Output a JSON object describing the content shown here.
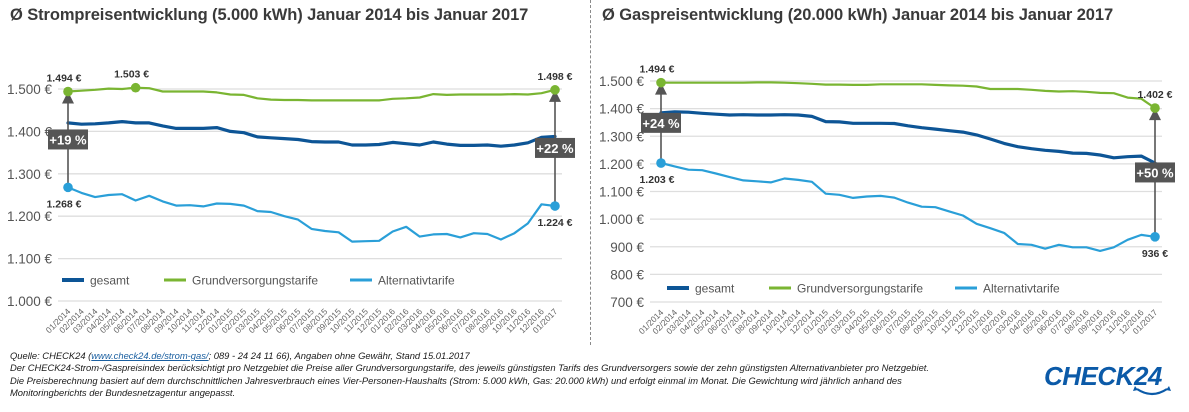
{
  "colors": {
    "gesamt": "#0d5596",
    "grund": "#7ab532",
    "alternativ": "#2a9fd8",
    "gridline": "#dedede",
    "axis_text": "#555555",
    "annotation_box": "#555555",
    "logo": "#0b5aa8"
  },
  "chart_data": [
    {
      "id": "strom",
      "type": "line",
      "title": "Ø Strompreisentwicklung (5.000 kWh) Januar 2014 bis Januar 2017",
      "xlabel": "",
      "ylabel": "",
      "ylim": [
        1000,
        1500
      ],
      "yticks": [
        1000,
        1100,
        1200,
        1300,
        1400,
        1500
      ],
      "ytick_labels": [
        "1.000 €",
        "1.100 €",
        "1.200 €",
        "1.300 €",
        "1.400 €",
        "1.500 €"
      ],
      "grid": true,
      "legend": "bottom-left inside",
      "categories": [
        "01/2014",
        "02/2014",
        "03/2014",
        "04/2014",
        "05/2014",
        "06/2014",
        "07/2014",
        "08/2014",
        "09/2014",
        "10/2014",
        "11/2014",
        "12/2014",
        "01/2015",
        "02/2015",
        "03/2015",
        "04/2015",
        "05/2015",
        "06/2015",
        "07/2015",
        "08/2015",
        "09/2015",
        "10/2015",
        "11/2015",
        "12/2015",
        "01/2016",
        "02/2016",
        "03/2016",
        "04/2016",
        "05/2016",
        "06/2016",
        "07/2016",
        "08/2016",
        "09/2016",
        "10/2016",
        "11/2016",
        "12/2016",
        "01/2017"
      ],
      "series": [
        {
          "key": "gesamt",
          "name": "gesamt",
          "values": [
            1420,
            1417,
            1418,
            1420,
            1423,
            1420,
            1420,
            1413,
            1407,
            1407,
            1407,
            1409,
            1400,
            1397,
            1387,
            1385,
            1383,
            1381,
            1376,
            1375,
            1375,
            1368,
            1368,
            1369,
            1374,
            1371,
            1368,
            1375,
            1370,
            1367,
            1367,
            1368,
            1365,
            1368,
            1373,
            1386,
            1388
          ]
        },
        {
          "key": "grund",
          "name": "Grundversorgungstarife",
          "values": [
            1494,
            1496,
            1498,
            1501,
            1500,
            1503,
            1502,
            1494,
            1494,
            1494,
            1494,
            1492,
            1487,
            1486,
            1478,
            1475,
            1474,
            1474,
            1473,
            1473,
            1473,
            1473,
            1473,
            1473,
            1477,
            1478,
            1480,
            1488,
            1486,
            1487,
            1487,
            1487,
            1487,
            1488,
            1487,
            1490,
            1498
          ]
        },
        {
          "key": "alternativ",
          "name": "Alternativtarife",
          "values": [
            1268,
            1255,
            1245,
            1250,
            1252,
            1237,
            1248,
            1235,
            1225,
            1226,
            1223,
            1230,
            1229,
            1225,
            1212,
            1210,
            1200,
            1192,
            1170,
            1165,
            1162,
            1140,
            1141,
            1142,
            1164,
            1175,
            1152,
            1157,
            1158,
            1150,
            1160,
            1158,
            1145,
            1160,
            1183,
            1228,
            1224
          ]
        }
      ],
      "annotations": {
        "labels": [
          {
            "series": "grund",
            "index": 0,
            "text": "1.494 €",
            "pos": "above"
          },
          {
            "series": "grund",
            "index": 5,
            "text": "1.503 €",
            "pos": "above"
          },
          {
            "series": "grund",
            "index": 36,
            "text": "1.498 €",
            "pos": "above"
          },
          {
            "series": "alternativ",
            "index": 0,
            "text": "1.268 €",
            "pos": "below"
          },
          {
            "series": "alternativ",
            "index": 36,
            "text": "1.224 €",
            "pos": "below"
          }
        ],
        "arrows": [
          {
            "index": 0,
            "from": 1268,
            "to": 1494,
            "text": "+19 %"
          },
          {
            "index": 36,
            "from": 1224,
            "to": 1498,
            "text": "+22 %"
          }
        ]
      }
    },
    {
      "id": "gas",
      "type": "line",
      "title": "Ø Gaspreisentwicklung (20.000 kWh) Januar 2014 bis Januar 2017",
      "xlabel": "",
      "ylabel": "",
      "ylim": [
        700,
        1500
      ],
      "yticks": [
        700,
        800,
        900,
        1000,
        1100,
        1200,
        1300,
        1400,
        1500
      ],
      "ytick_labels": [
        "700 €",
        "800 €",
        "900 €",
        "1.000 €",
        "1.100 €",
        "1.200 €",
        "1.300 €",
        "1.400 €",
        "1.500 €"
      ],
      "grid": true,
      "legend": "bottom-left inside",
      "categories": [
        "01/2014",
        "02/2014",
        "03/2014",
        "04/2014",
        "05/2014",
        "06/2014",
        "07/2014",
        "08/2014",
        "09/2014",
        "10/2014",
        "11/2014",
        "12/2014",
        "01/2015",
        "02/2015",
        "03/2015",
        "04/2015",
        "05/2015",
        "06/2015",
        "07/2015",
        "08/2015",
        "09/2015",
        "10/2015",
        "11/2015",
        "12/2015",
        "01/2016",
        "02/2016",
        "03/2016",
        "04/2016",
        "05/2016",
        "06/2016",
        "07/2016",
        "08/2016",
        "09/2016",
        "10/2016",
        "11/2016",
        "12/2016",
        "01/2017"
      ],
      "series": [
        {
          "key": "gesamt",
          "name": "gesamt",
          "values": [
            1385,
            1388,
            1387,
            1383,
            1380,
            1377,
            1378,
            1377,
            1377,
            1378,
            1377,
            1372,
            1353,
            1352,
            1347,
            1347,
            1347,
            1346,
            1338,
            1331,
            1326,
            1320,
            1315,
            1305,
            1290,
            1274,
            1262,
            1255,
            1249,
            1245,
            1239,
            1238,
            1232,
            1222,
            1226,
            1228,
            1203
          ]
        },
        {
          "key": "grund",
          "name": "Grundversorgungstarife",
          "values": [
            1494,
            1494,
            1494,
            1494,
            1494,
            1494,
            1494,
            1495,
            1495,
            1494,
            1492,
            1490,
            1487,
            1487,
            1486,
            1486,
            1488,
            1488,
            1488,
            1488,
            1486,
            1484,
            1483,
            1480,
            1471,
            1471,
            1471,
            1468,
            1464,
            1462,
            1463,
            1461,
            1457,
            1456,
            1440,
            1436,
            1402
          ]
        },
        {
          "key": "alternativ",
          "name": "Alternativtarife",
          "values": [
            1203,
            1191,
            1179,
            1177,
            1165,
            1152,
            1140,
            1137,
            1133,
            1147,
            1142,
            1135,
            1092,
            1088,
            1077,
            1082,
            1084,
            1078,
            1060,
            1045,
            1043,
            1028,
            1013,
            983,
            967,
            950,
            910,
            907,
            893,
            907,
            898,
            898,
            885,
            898,
            925,
            943,
            936
          ]
        }
      ],
      "annotations": {
        "labels": [
          {
            "series": "grund",
            "index": 0,
            "text": "1.494 €",
            "pos": "above"
          },
          {
            "series": "grund",
            "index": 36,
            "text": "1.402 €",
            "pos": "above"
          },
          {
            "series": "alternativ",
            "index": 0,
            "text": "1.203 €",
            "pos": "below"
          },
          {
            "series": "alternativ",
            "index": 36,
            "text": "936 €",
            "pos": "below"
          }
        ],
        "arrows": [
          {
            "index": 0,
            "from": 1203,
            "to": 1494,
            "text": "+24 %"
          },
          {
            "index": 36,
            "from": 936,
            "to": 1402,
            "text": "+50 %"
          }
        ]
      }
    }
  ],
  "legend_items": [
    {
      "key": "gesamt",
      "label": "gesamt"
    },
    {
      "key": "grund",
      "label": "Grundversorgungstarife"
    },
    {
      "key": "alternativ",
      "label": "Alternativtarife"
    }
  ],
  "footer": {
    "source_prefix": "Quelle: CHECK24 (",
    "source_link": "www.check24.de/strom-gas/",
    "source_suffix": "; 089 - 24 24 11 66), Angaben ohne Gewähr, Stand 15.01.2017",
    "line2": "Der CHECK24-Strom-/Gaspreisindex berücksichtigt pro Netzgebiet die Preise aller Grundversorgungstarife, des jeweils günstigsten Tarifs des Grundversorgers sowie der zehn günstigsten Alternativanbieter pro Netzgebiet.",
    "line3": "Die Preisberechnung basiert auf dem durchschnittlichen Jahresverbrauch eines Vier-Personen-Haushalts (Strom: 5.000 kWh, Gas: 20.000 kWh) und erfolgt einmal im Monat. Die Gewichtung wird jährlich anhand des",
    "line4": "Monitoringberichts der Bundesnetzagentur angepasst."
  },
  "logo": {
    "text": "CHECK24"
  }
}
